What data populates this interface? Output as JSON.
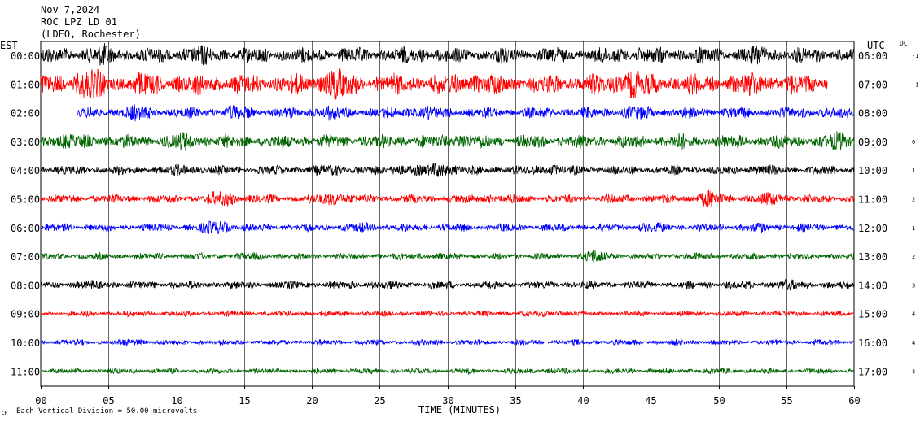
{
  "header": {
    "date": "Nov 7,2024",
    "station": "ROC LPZ LD 01",
    "network": "(LDEO, Rochester)"
  },
  "left_axis_label": "EST",
  "right_axis_label": "UTC",
  "dc_label": "DC",
  "footer_note": "Each Vertical Division =   50.00 microvolts",
  "footer_mark": "CR",
  "chart_data": {
    "type": "line",
    "title": "",
    "xlabel": "TIME (MINUTES)",
    "ylabel": "",
    "xlim": [
      0,
      60
    ],
    "x_ticks": [
      "00",
      "05",
      "10",
      "15",
      "20",
      "25",
      "30",
      "35",
      "40",
      "45",
      "50",
      "55",
      "60"
    ],
    "grid": true,
    "trace_colors": [
      "#000000",
      "#ff0000",
      "#0000ff",
      "#006400"
    ],
    "series": [
      {
        "est": "00:00",
        "utc": "06:00",
        "dc": "-1",
        "start_min": 0,
        "end_min": 60,
        "amplitude": 7,
        "events": [
          {
            "t": 4.5,
            "a": 1.6
          },
          {
            "t": 11.5,
            "a": 1.5
          },
          {
            "t": 28.5,
            "a": 1.2
          },
          {
            "t": 43.5,
            "a": 1.3
          },
          {
            "t": 53,
            "a": 1.5
          }
        ]
      },
      {
        "est": "01:00",
        "utc": "07:00",
        "dc": "-1",
        "start_min": 0,
        "end_min": 58,
        "amplitude": 9,
        "events": [
          {
            "t": 3.5,
            "a": 1.9
          },
          {
            "t": 7.5,
            "a": 1.3
          },
          {
            "t": 21.5,
            "a": 2.0
          },
          {
            "t": 32,
            "a": 1.3
          },
          {
            "t": 43.5,
            "a": 1.9
          },
          {
            "t": 53,
            "a": 1.4
          }
        ]
      },
      {
        "est": "02:00",
        "utc": "08:00",
        "dc": "",
        "start_min": 2.7,
        "end_min": 60,
        "amplitude": 5,
        "events": [
          {
            "t": 7,
            "a": 1.7
          },
          {
            "t": 14.5,
            "a": 1.5
          },
          {
            "t": 21,
            "a": 1.6
          },
          {
            "t": 28,
            "a": 1.5
          },
          {
            "t": 44,
            "a": 1.5
          },
          {
            "t": 57,
            "a": 1.2
          }
        ]
      },
      {
        "est": "03:00",
        "utc": "09:00",
        "dc": "0",
        "start_min": 0,
        "end_min": 60,
        "amplitude": 6,
        "events": [
          {
            "t": 1.5,
            "a": 1.5
          },
          {
            "t": 10.5,
            "a": 1.6
          },
          {
            "t": 31,
            "a": 1.6
          },
          {
            "t": 47,
            "a": 1.3
          },
          {
            "t": 59,
            "a": 1.7
          }
        ]
      },
      {
        "est": "04:00",
        "utc": "10:00",
        "dc": "1",
        "start_min": 0,
        "end_min": 60,
        "amplitude": 4,
        "events": [
          {
            "t": 10.5,
            "a": 1.6
          },
          {
            "t": 21.5,
            "a": 1.6
          },
          {
            "t": 26.5,
            "a": 1.8
          },
          {
            "t": 29.5,
            "a": 2.4
          },
          {
            "t": 37.5,
            "a": 1.8
          },
          {
            "t": 53,
            "a": 1.4
          }
        ]
      },
      {
        "est": "05:00",
        "utc": "11:00",
        "dc": "2",
        "start_min": 0,
        "end_min": 60,
        "amplitude": 4,
        "events": [
          {
            "t": 13.5,
            "a": 2.4
          },
          {
            "t": 21.7,
            "a": 2.3
          },
          {
            "t": 33,
            "a": 1.4
          },
          {
            "t": 49.3,
            "a": 2.4
          },
          {
            "t": 54,
            "a": 2.0
          }
        ]
      },
      {
        "est": "06:00",
        "utc": "12:00",
        "dc": "1",
        "start_min": 0,
        "end_min": 60,
        "amplitude": 3.5,
        "events": [
          {
            "t": 13,
            "a": 2.4
          },
          {
            "t": 24,
            "a": 1.6
          },
          {
            "t": 45,
            "a": 1.5
          },
          {
            "t": 53,
            "a": 1.4
          }
        ]
      },
      {
        "est": "07:00",
        "utc": "13:00",
        "dc": "2",
        "start_min": 0,
        "end_min": 60,
        "amplitude": 3,
        "events": [
          {
            "t": 40.8,
            "a": 2.5
          },
          {
            "t": 16,
            "a": 1.3
          },
          {
            "t": 28,
            "a": 1.3
          },
          {
            "t": 48,
            "a": 1.2
          }
        ]
      },
      {
        "est": "08:00",
        "utc": "14:00",
        "dc": "3",
        "start_min": 0,
        "end_min": 60,
        "amplitude": 3.5,
        "events": [
          {
            "t": 4,
            "a": 1.3
          },
          {
            "t": 55,
            "a": 1.7
          },
          {
            "t": 25,
            "a": 1.2
          }
        ]
      },
      {
        "est": "09:00",
        "utc": "15:00",
        "dc": "4",
        "start_min": 0,
        "end_min": 60,
        "amplitude": 2.5,
        "events": [
          {
            "t": 38,
            "a": 1.6
          },
          {
            "t": 20,
            "a": 1.2
          }
        ]
      },
      {
        "est": "10:00",
        "utc": "16:00",
        "dc": "4",
        "start_min": 0,
        "end_min": 60,
        "amplitude": 2.5,
        "events": [
          {
            "t": 7,
            "a": 1.5
          },
          {
            "t": 33,
            "a": 1.2
          }
        ]
      },
      {
        "est": "11:00",
        "utc": "17:00",
        "dc": "4",
        "start_min": 0,
        "end_min": 60,
        "amplitude": 2.5,
        "events": [
          {
            "t": 37.5,
            "a": 1.3
          },
          {
            "t": 50,
            "a": 1.2
          }
        ]
      }
    ]
  }
}
